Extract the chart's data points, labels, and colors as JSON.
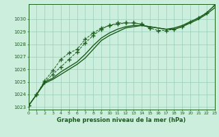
{
  "bg_color": "#cceedd",
  "grid_color": "#99ccbb",
  "line_color": "#1a5c1a",
  "title": "Graphe pression niveau de la mer (hPa)",
  "xlim": [
    0,
    23
  ],
  "ylim": [
    1022.8,
    1031.2
  ],
  "yticks": [
    1023,
    1024,
    1025,
    1026,
    1027,
    1028,
    1029,
    1030
  ],
  "xticks": [
    0,
    1,
    2,
    3,
    4,
    5,
    6,
    7,
    8,
    9,
    10,
    11,
    12,
    13,
    14,
    15,
    16,
    17,
    18,
    19,
    20,
    21,
    22,
    23
  ],
  "s1_x": [
    0,
    1,
    2,
    3,
    4,
    5,
    6,
    7,
    8,
    9,
    10,
    11,
    12,
    13,
    14,
    15,
    16,
    17,
    18,
    19,
    20,
    21,
    22,
    23
  ],
  "s1_y": [
    1023.1,
    1024.0,
    1025.0,
    1025.3,
    1025.8,
    1026.2,
    1026.6,
    1027.2,
    1027.9,
    1028.5,
    1028.9,
    1029.2,
    1029.4,
    1029.5,
    1029.5,
    1029.4,
    1029.3,
    1029.2,
    1029.2,
    1029.4,
    1029.7,
    1030.0,
    1030.4,
    1030.9
  ],
  "s2_x": [
    0,
    1,
    2,
    3,
    4,
    5,
    6,
    7,
    8,
    9,
    10,
    11,
    12,
    13,
    14,
    15,
    16,
    17,
    18,
    19,
    20,
    21,
    22,
    23
  ],
  "s2_y": [
    1023.1,
    1024.0,
    1024.9,
    1025.2,
    1025.6,
    1026.0,
    1026.4,
    1026.9,
    1027.6,
    1028.3,
    1028.7,
    1029.0,
    1029.3,
    1029.4,
    1029.5,
    1029.4,
    1029.3,
    1029.2,
    1029.3,
    1029.5,
    1029.8,
    1030.1,
    1030.5,
    1031.1
  ],
  "s3_x": [
    0,
    1,
    2,
    3,
    4,
    5,
    6,
    7,
    8,
    9,
    10,
    11,
    12,
    13,
    14,
    15,
    16,
    17,
    18,
    19,
    20,
    21,
    22,
    23
  ],
  "s3_y": [
    1023.1,
    1024.0,
    1025.0,
    1025.6,
    1026.2,
    1026.8,
    1027.4,
    1028.1,
    1028.7,
    1029.2,
    1029.5,
    1029.6,
    1029.7,
    1029.7,
    1029.6,
    1029.3,
    1029.1,
    1029.1,
    1029.2,
    1029.4,
    1029.8,
    1030.1,
    1030.5,
    1031.1
  ],
  "s4_x": [
    0,
    1,
    2,
    3,
    4,
    5,
    6,
    7,
    8,
    9,
    10,
    11,
    12,
    13,
    14,
    15
  ],
  "s4_y": [
    1023.1,
    1024.0,
    1025.1,
    1025.9,
    1026.8,
    1027.3,
    1027.6,
    1028.4,
    1028.9,
    1029.3,
    1029.5,
    1029.7,
    1029.7,
    1029.7,
    1029.6,
    1029.3
  ]
}
